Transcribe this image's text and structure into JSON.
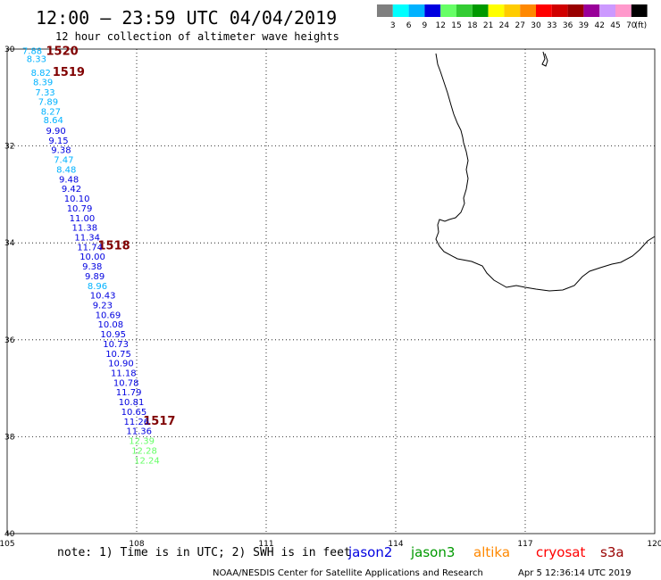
{
  "header": {
    "title": "12:00 – 23:59 UTC 04/04/2019",
    "subtitle": "12 hour collection of altimeter wave heights"
  },
  "legend": {
    "labels": [
      "3",
      "6",
      "9",
      "12",
      "15",
      "18",
      "21",
      "24",
      "27",
      "30",
      "33",
      "36",
      "39",
      "42",
      "45",
      "70"
    ],
    "unit": "(ft)",
    "colors": [
      "#7f7f7f",
      "#00ffff",
      "#00b2ff",
      "#0000e0",
      "#66ff66",
      "#33cc33",
      "#009900",
      "#ffff00",
      "#ffcc00",
      "#ff8800",
      "#ff0000",
      "#d00000",
      "#990000",
      "#990099",
      "#cc99ff",
      "#ff99cc",
      "#000000"
    ]
  },
  "map": {
    "lon_range": [
      105,
      120
    ],
    "lat_range": [
      -40,
      -30
    ],
    "x_tick_labels": [
      "105",
      "108",
      "111",
      "114",
      "117",
      "120"
    ],
    "y_tick_labels": [
      "30",
      "32",
      "34",
      "36",
      "38",
      "40"
    ],
    "grid": "dotted",
    "coastline": "Western Australia (south-west coast)"
  },
  "chart_data": {
    "type": "scatter",
    "description_units": "longitude (°E), latitude (°), significant wave height (ft)",
    "passes": [
      {
        "label": "1520",
        "lon": 105.9,
        "lat": -30.12
      },
      {
        "label": "1519",
        "lon": 106.05,
        "lat": -30.55
      },
      {
        "label": "1518",
        "lon": 107.1,
        "lat": -34.13
      },
      {
        "label": "1517",
        "lon": 108.15,
        "lat": -37.75
      }
    ],
    "points": [
      {
        "lon": 105.35,
        "lat": -30.1,
        "swh": "7.88",
        "color": "#00b2ff"
      },
      {
        "lon": 105.45,
        "lat": -30.27,
        "swh": "8.33",
        "color": "#00b2ff"
      },
      {
        "lon": 105.55,
        "lat": -30.55,
        "swh": "8.82",
        "color": "#00b2ff"
      },
      {
        "lon": 105.6,
        "lat": -30.75,
        "swh": "8.39",
        "color": "#00b2ff"
      },
      {
        "lon": 105.65,
        "lat": -30.96,
        "swh": "7.33",
        "color": "#00b2ff"
      },
      {
        "lon": 105.72,
        "lat": -31.15,
        "swh": "7.89",
        "color": "#00b2ff"
      },
      {
        "lon": 105.78,
        "lat": -31.35,
        "swh": "8.27",
        "color": "#00b2ff"
      },
      {
        "lon": 105.84,
        "lat": -31.53,
        "swh": "8.64",
        "color": "#00b2ff"
      },
      {
        "lon": 105.9,
        "lat": -31.75,
        "swh": "9.90",
        "color": "#0000e0"
      },
      {
        "lon": 105.96,
        "lat": -31.95,
        "swh": "9.15",
        "color": "#0000e0"
      },
      {
        "lon": 106.02,
        "lat": -32.15,
        "swh": "9.38",
        "color": "#0000e0"
      },
      {
        "lon": 106.08,
        "lat": -32.35,
        "swh": "7.47",
        "color": "#00b2ff"
      },
      {
        "lon": 106.14,
        "lat": -32.55,
        "swh": "8.48",
        "color": "#00b2ff"
      },
      {
        "lon": 106.2,
        "lat": -32.75,
        "swh": "9.48",
        "color": "#0000e0"
      },
      {
        "lon": 106.26,
        "lat": -32.95,
        "swh": "9.42",
        "color": "#0000e0"
      },
      {
        "lon": 106.32,
        "lat": -33.15,
        "swh": "10.10",
        "color": "#0000e0"
      },
      {
        "lon": 106.38,
        "lat": -33.35,
        "swh": "10.79",
        "color": "#0000e0"
      },
      {
        "lon": 106.44,
        "lat": -33.55,
        "swh": "11.00",
        "color": "#0000e0"
      },
      {
        "lon": 106.5,
        "lat": -33.75,
        "swh": "11.38",
        "color": "#0000e0"
      },
      {
        "lon": 106.56,
        "lat": -33.95,
        "swh": "11.34",
        "color": "#0000e0"
      },
      {
        "lon": 106.62,
        "lat": -34.15,
        "swh": "11.74",
        "color": "#0000e0"
      },
      {
        "lon": 106.68,
        "lat": -34.35,
        "swh": "10.00",
        "color": "#0000e0"
      },
      {
        "lon": 106.74,
        "lat": -34.55,
        "swh": "9.38",
        "color": "#0000e0"
      },
      {
        "lon": 106.8,
        "lat": -34.75,
        "swh": "9.89",
        "color": "#0000e0"
      },
      {
        "lon": 106.86,
        "lat": -34.95,
        "swh": "8.96",
        "color": "#00b2ff"
      },
      {
        "lon": 106.92,
        "lat": -35.15,
        "swh": "10.43",
        "color": "#0000e0"
      },
      {
        "lon": 106.98,
        "lat": -35.35,
        "swh": "9.23",
        "color": "#0000e0"
      },
      {
        "lon": 107.04,
        "lat": -35.55,
        "swh": "10.69",
        "color": "#0000e0"
      },
      {
        "lon": 107.1,
        "lat": -35.75,
        "swh": "10.08",
        "color": "#0000e0"
      },
      {
        "lon": 107.16,
        "lat": -35.95,
        "swh": "10.95",
        "color": "#0000e0"
      },
      {
        "lon": 107.22,
        "lat": -36.15,
        "swh": "10.73",
        "color": "#0000e0"
      },
      {
        "lon": 107.28,
        "lat": -36.35,
        "swh": "10.75",
        "color": "#0000e0"
      },
      {
        "lon": 107.34,
        "lat": -36.55,
        "swh": "10.90",
        "color": "#0000e0"
      },
      {
        "lon": 107.4,
        "lat": -36.75,
        "swh": "11.18",
        "color": "#0000e0"
      },
      {
        "lon": 107.46,
        "lat": -36.95,
        "swh": "10.78",
        "color": "#0000e0"
      },
      {
        "lon": 107.52,
        "lat": -37.15,
        "swh": "11.79",
        "color": "#0000e0"
      },
      {
        "lon": 107.58,
        "lat": -37.35,
        "swh": "10.81",
        "color": "#0000e0"
      },
      {
        "lon": 107.64,
        "lat": -37.55,
        "swh": "10.65",
        "color": "#0000e0"
      },
      {
        "lon": 107.7,
        "lat": -37.75,
        "swh": "11.26",
        "color": "#0000e0"
      },
      {
        "lon": 107.76,
        "lat": -37.95,
        "swh": "11.36",
        "color": "#0000e0"
      },
      {
        "lon": 107.82,
        "lat": -38.15,
        "swh": "12.39",
        "color": "#66ff66"
      },
      {
        "lon": 107.88,
        "lat": -38.35,
        "swh": "12.28",
        "color": "#66ff66"
      },
      {
        "lon": 107.94,
        "lat": -38.55,
        "swh": "12.24",
        "color": "#66ff66"
      }
    ]
  },
  "footer": {
    "note": "note:  1) Time is in UTC;  2) SWH is in feet",
    "satellites": [
      {
        "name": "jason2",
        "color": "#0000e0"
      },
      {
        "name": "jason3",
        "color": "#009900"
      },
      {
        "name": "altika",
        "color": "#ff8800"
      },
      {
        "name": "cryosat",
        "color": "#ff0000"
      },
      {
        "name": "s3a",
        "color": "#990000"
      }
    ],
    "credit": "NOAA/NESDIS Center for Satellite Applications and Research",
    "timestamp": "Apr  5 12:36:14 UTC 2019"
  }
}
